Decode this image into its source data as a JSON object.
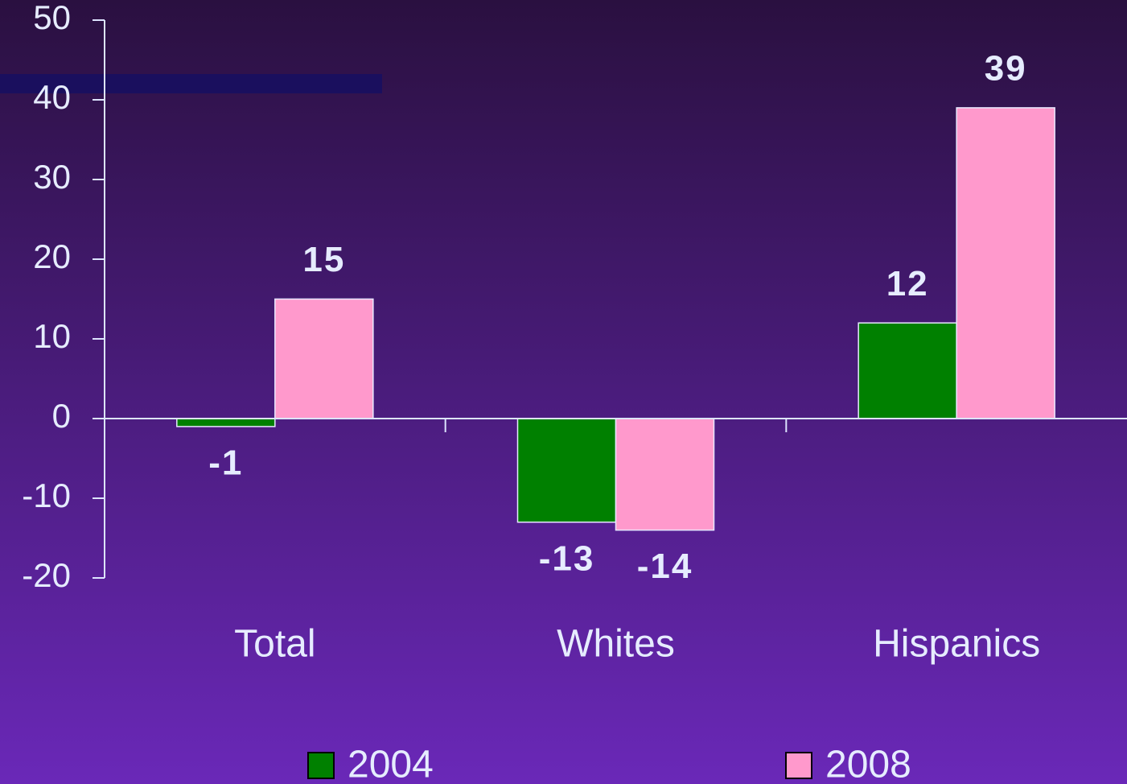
{
  "chart_data": {
    "type": "bar",
    "categories": [
      "Total",
      "Whites",
      "Hispanics"
    ],
    "series": [
      {
        "name": "2004",
        "color": "#008000",
        "values": [
          -1,
          -13,
          12
        ]
      },
      {
        "name": "2008",
        "color": "#ff99cc",
        "values": [
          15,
          -14,
          39
        ]
      }
    ],
    "ylim": [
      -20,
      50
    ],
    "yticks": [
      -20,
      -10,
      0,
      10,
      20,
      30,
      40,
      50
    ],
    "grid": false,
    "legend": "bottom"
  }
}
